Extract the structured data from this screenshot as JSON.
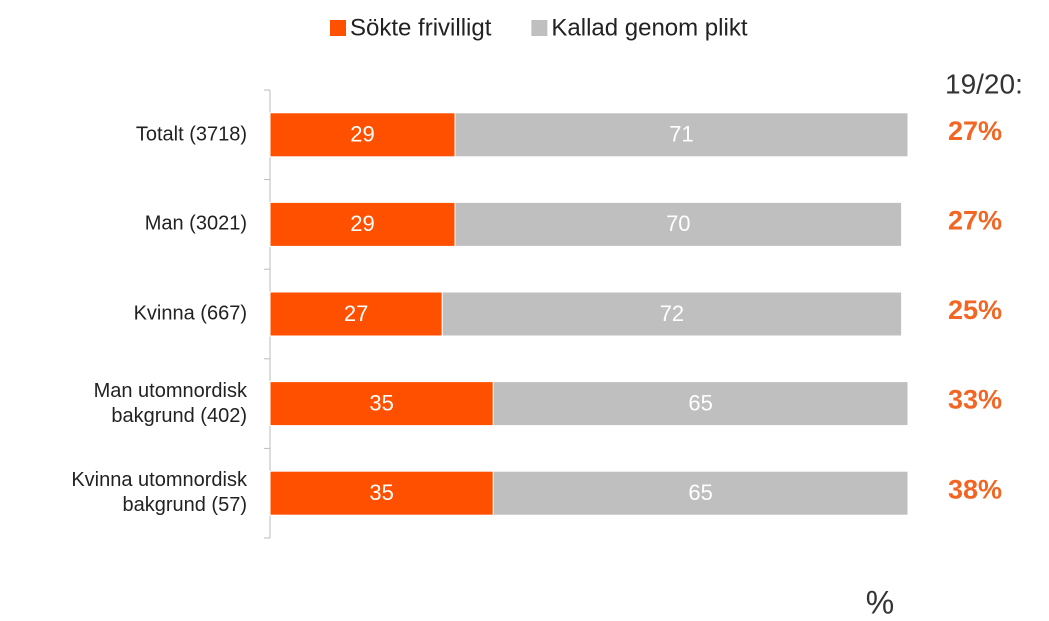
{
  "chart_data": {
    "type": "bar",
    "orientation": "horizontal",
    "stacked": true,
    "categories": [
      "Totalt (3718)",
      "Man (3021)",
      "Kvinna (667)",
      "Man utomnordisk\nbakgrund (402)",
      "Kvinna utomnordisk\nbakgrund (57)"
    ],
    "series": [
      {
        "name": "Sökte frivilligt",
        "color": "#ff5000",
        "values": [
          29,
          29,
          27,
          35,
          35
        ]
      },
      {
        "name": "Kallad genom plikt",
        "color": "#bfbfbf",
        "values": [
          71,
          70,
          72,
          65,
          65
        ]
      }
    ],
    "xlim": [
      0,
      100
    ],
    "x_label": "%",
    "comparison": {
      "title": "19/20:",
      "color": "#f26522",
      "values": [
        27,
        27,
        25,
        33,
        38
      ],
      "value_labels": [
        "27%",
        "27%",
        "25%",
        "33%",
        "38%"
      ]
    }
  }
}
